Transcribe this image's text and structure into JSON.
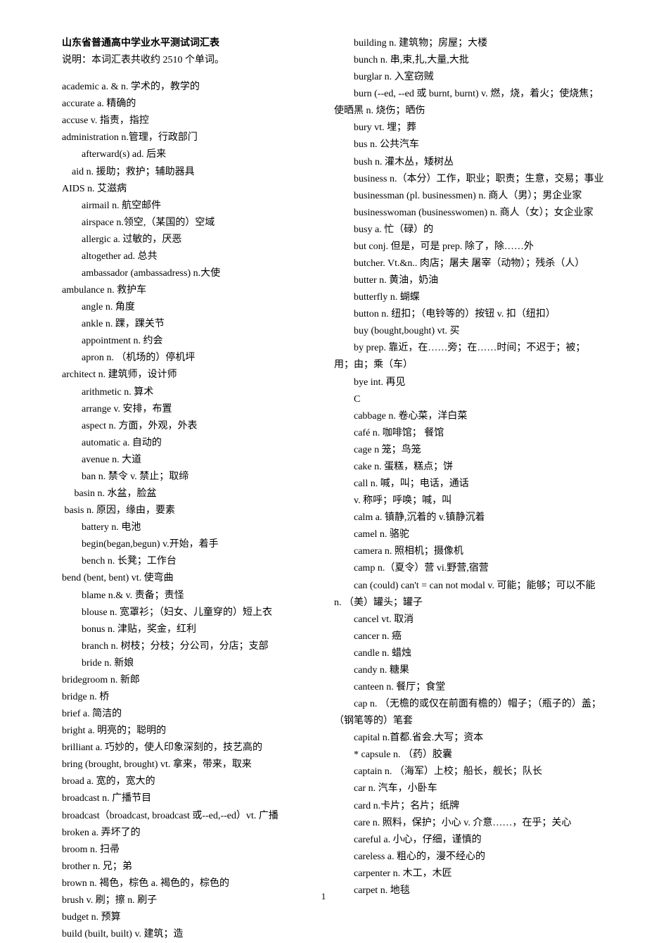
{
  "title": "山东省普通高中学业水平测试词汇表",
  "intro": "　　说明：本词汇表共收约 2510 个单词。",
  "page_number": "1",
  "left": [
    {
      "b": 2,
      "t": "academic a. & n.  学术的，教学的"
    },
    {
      "b": 2,
      "t": "accurate a.  精确的"
    },
    {
      "b": 2,
      "t": "accuse v.  指责，指控"
    },
    {
      "b": 2,
      "t": "administration n.管理，行政部门"
    },
    {
      "b": 4,
      "t": "afterward(s) ad.  后来"
    },
    {
      "b": 3,
      "t": "aid n.  援助；救护；辅助器具"
    },
    {
      "b": 2,
      "t": "AIDS n.  艾滋病"
    },
    {
      "b": 4,
      "t": "airmail n.  航空邮件"
    },
    {
      "b": 4,
      "t": "airspace n.领空,（某国的）空域"
    },
    {
      "b": 4,
      "t": "allergic a.  过敏的，厌恶"
    },
    {
      "b": 4,
      "t": "altogether ad.  总共"
    },
    {
      "b": 4,
      "t": "ambassador (ambassadress) n.大使"
    },
    {
      "b": 2,
      "t": "ambulance n.  救护车"
    },
    {
      "b": 4,
      "t": "angle n.  角度"
    },
    {
      "b": 4,
      "t": "ankle n.  踝，踝关节"
    },
    {
      "b": 4,
      "t": "appointment n.  约会"
    },
    {
      "b": 4,
      "t": "apron n. （机场的）停机坪"
    },
    {
      "b": 2,
      "t": "architect n.  建筑师，设计师"
    },
    {
      "b": 4,
      "t": "arithmetic n.  算术"
    },
    {
      "b": 4,
      "t": "arrange v.  安排，布置"
    },
    {
      "b": 4,
      "t": "aspect n.  方面，外观，外表"
    },
    {
      "b": 4,
      "t": "automatic a.  自动的"
    },
    {
      "b": 4,
      "t": "avenue n.  大道"
    },
    {
      "b": 4,
      "t": "ban n.  禁令  v.  禁止；取缔"
    },
    {
      "b": 3,
      "t": "   basin n.  水盆，脸盆"
    },
    {
      "b": 2,
      "t": "     basis n.  原因，缘由，要素"
    },
    {
      "b": 4,
      "t": "battery n.  电池"
    },
    {
      "b": 4,
      "t": "begin(began,begun) v.开始，着手"
    },
    {
      "b": 4,
      "t": "bench n.  长凳；工作台"
    },
    {
      "b": 2,
      "t": "bend (bent, bent) vt.  使弯曲"
    },
    {
      "b": 4,
      "t": "blame n.& v.  责备；责怪"
    },
    {
      "b": 4,
      "t": "blouse n.  宽罩衫；（妇女、儿童穿的）短上衣"
    },
    {
      "b": 4,
      "t": "bonus n.  津贴，奖金，红利"
    },
    {
      "b": 4,
      "t": "branch n.  树枝；分枝；分公司，分店；支部"
    },
    {
      "b": 4,
      "t": "bride n.  新娘"
    },
    {
      "b": 2,
      "t": "bridegroom n.  新郎"
    },
    {
      "b": 2,
      "t": "bridge n.  桥"
    },
    {
      "b": 2,
      "t": "brief a.  简洁的"
    },
    {
      "b": 2,
      "t": "bright a.  明亮的；聪明的"
    },
    {
      "b": 2,
      "t": "brilliant a.  巧妙的，使人印象深刻的，技艺高的"
    },
    {
      "b": 2,
      "t": "bring (brought, brought) vt.  拿来，带来，取来"
    },
    {
      "b": 2,
      "t": "broad a.  宽的，宽大的"
    },
    {
      "b": 2,
      "t": "broadcast n.  广播节目"
    },
    {
      "b": 2,
      "t": "broadcast（broadcast, broadcast 或--ed,--ed）vt.  广播"
    },
    {
      "b": 2,
      "t": "broken a.  弄坏了的"
    },
    {
      "b": 2,
      "t": "broom n.  扫帚"
    },
    {
      "b": 2,
      "t": "brother n.  兄；弟"
    },
    {
      "b": 2,
      "t": "brown n.  褐色，棕色  a.  褐色的，棕色的"
    },
    {
      "b": 2,
      "t": "brush v.  刷；擦  n.  刷子"
    },
    {
      "b": 2,
      "t": "budget n.  预算"
    },
    {
      "b": 2,
      "t": "build (built, built) v.  建筑；造"
    }
  ],
  "right": [
    {
      "b": 2,
      "t": "building n.  建筑物；房屋；大楼"
    },
    {
      "b": 2,
      "t": "bunch n.  串,束,扎,大量,大批"
    },
    {
      "b": 2,
      "t": "burglar n.  入室窃贼"
    },
    {
      "b": 2,
      "t": "burn (--ed, --ed 或  burnt, burnt) v.  燃，烧，着火；使烧焦；使晒黑  n.  烧伤；晒伤"
    },
    {
      "b": 2,
      "t": "bury vt.  埋；葬"
    },
    {
      "b": 2,
      "t": "bus n.  公共汽车"
    },
    {
      "b": 2,
      "t": "bush n.  灌木丛，矮树丛"
    },
    {
      "b": 2,
      "t": "business n.（本分）工作，职业；职责；生意，交易；事业"
    },
    {
      "b": 2,
      "t": "businessman (pl. businessmen) n.  商人（男）；男企业家"
    },
    {
      "b": 2,
      "t": "businesswoman (businesswomen) n.  商人（女）；女企业家"
    },
    {
      "b": 2,
      "t": "busy a.  忙（碌）的"
    },
    {
      "b": 2,
      "t": "but conj.  但是，可是  prep.  除了，除……外"
    },
    {
      "b": 2,
      "t": "butcher. Vt.&n..  肉店；屠夫 屠宰（动物）；残杀（人）"
    },
    {
      "b": 2,
      "t": "butter n.  黄油，奶油"
    },
    {
      "b": 2,
      "t": "butterfly n.  蝴蝶"
    },
    {
      "b": 2,
      "t": "button n.  纽扣；（电铃等的）按钮  v.  扣（纽扣）"
    },
    {
      "b": 2,
      "t": "buy (bought,bought) vt.  买"
    },
    {
      "b": 2,
      "t": "by prep.  靠近，在……旁；在……时间；不迟于；被；用；由；乘（车）"
    },
    {
      "b": 2,
      "t": "bye int.  再见"
    },
    {
      "b": 2,
      "t": "C"
    },
    {
      "b": 2,
      "t": "cabbage n.  卷心菜，洋白菜"
    },
    {
      "b": 2,
      "t": "café n.  咖啡馆；  餐馆"
    },
    {
      "b": 2,
      "t": "cage n   笼；鸟笼"
    },
    {
      "b": 2,
      "t": "cake n.  蛋糕，糕点；饼"
    },
    {
      "b": 2,
      "t": "call n.  喊，叫；电话，通话"
    },
    {
      "b": 2,
      "t": "v.  称呼；呼唤；喊，叫"
    },
    {
      "b": 2,
      "t": "calm a.  镇静,沉着的  v.镇静沉着"
    },
    {
      "b": 2,
      "t": "camel n.  骆驼"
    },
    {
      "b": 2,
      "t": "camera n.  照相机；摄像机"
    },
    {
      "b": 2,
      "t": "camp n.（夏令）营  vi.野营,宿营"
    },
    {
      "b": 2,
      "t": "can (could) can't = can not modal v.  可能；能够；可以不能  n. （美）罐头；罐子"
    },
    {
      "b": 2,
      "t": "cancel vt.  取消"
    },
    {
      "b": 2,
      "t": "cancer n.  癌"
    },
    {
      "b": 2,
      "t": "candle n.  蜡烛"
    },
    {
      "b": 2,
      "t": "candy n.  糖果"
    },
    {
      "b": 2,
      "t": "canteen n.  餐厅；食堂"
    },
    {
      "b": 2,
      "t": "cap n.  （无檐的或仅在前面有檐的）帽子；（瓶子的）盖；（钢笔等的）笔套"
    },
    {
      "b": 2,
      "t": "capital n.首都.省会.大写；资本"
    },
    {
      "b": 2,
      "t": "* capsule n.  （药）胶囊"
    },
    {
      "b": 2,
      "t": "captain n.  （海军）上校；船长，舰长；队长"
    },
    {
      "b": 2,
      "t": "car n.  汽车，小卧车"
    },
    {
      "b": 2,
      "t": "card n.卡片；名片；纸牌"
    },
    {
      "b": 2,
      "t": "care n.  照料，保护；小心  v.  介意……，在乎；关心"
    },
    {
      "b": 2,
      "t": "careful a.  小心，仔细，谨慎的"
    },
    {
      "b": 2,
      "t": "careless a.  粗心的，漫不经心的"
    },
    {
      "b": 2,
      "t": "carpenter n.  木工，木匠"
    },
    {
      "b": 2,
      "t": "carpet n.  地毯"
    }
  ]
}
